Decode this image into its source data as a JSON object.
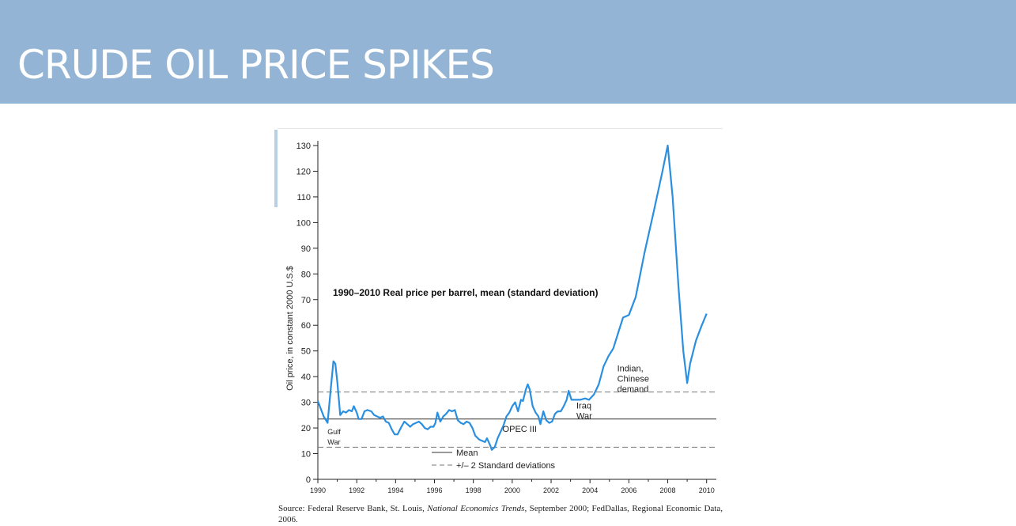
{
  "banner": {
    "title": "CRUDE OIL PRICE SPIKES",
    "color": "#93b4d4"
  },
  "chart_data": {
    "type": "line",
    "title": "1990–2010 Real price per barrel, mean (standard deviation)",
    "ylabel": "Oil price, in constant 2000 U.S.$",
    "xlabel": "",
    "xlim": [
      1990,
      2010.5
    ],
    "ylim": [
      0,
      130
    ],
    "x_ticks": [
      1990,
      1992,
      1994,
      1996,
      1998,
      2000,
      2002,
      2004,
      2006,
      2008,
      2010
    ],
    "y_ticks": [
      0,
      10,
      20,
      30,
      40,
      50,
      60,
      70,
      80,
      90,
      100,
      110,
      120,
      130
    ],
    "series": [
      {
        "color": "#2b8fe0",
        "points": [
          [
            1990.0,
            30.5
          ],
          [
            1990.3,
            24.5
          ],
          [
            1990.5,
            22.0
          ],
          [
            1990.7,
            38.0
          ],
          [
            1990.8,
            46.0
          ],
          [
            1990.9,
            45.0
          ],
          [
            1991.0,
            38.0
          ],
          [
            1991.15,
            25.0
          ],
          [
            1991.3,
            26.5
          ],
          [
            1991.45,
            26.0
          ],
          [
            1991.6,
            27.0
          ],
          [
            1991.75,
            26.5
          ],
          [
            1991.85,
            28.5
          ],
          [
            1992.0,
            26.0
          ],
          [
            1992.1,
            23.5
          ],
          [
            1992.25,
            23.5
          ],
          [
            1992.4,
            26.5
          ],
          [
            1992.55,
            27.0
          ],
          [
            1992.75,
            26.5
          ],
          [
            1992.9,
            25.0
          ],
          [
            1993.05,
            24.5
          ],
          [
            1993.2,
            24.0
          ],
          [
            1993.35,
            24.5
          ],
          [
            1993.5,
            22.5
          ],
          [
            1993.65,
            22.0
          ],
          [
            1993.8,
            19.5
          ],
          [
            1993.95,
            17.5
          ],
          [
            1994.1,
            17.5
          ],
          [
            1994.3,
            20.5
          ],
          [
            1994.45,
            22.5
          ],
          [
            1994.6,
            21.5
          ],
          [
            1994.75,
            20.5
          ],
          [
            1994.9,
            21.5
          ],
          [
            1995.05,
            22.0
          ],
          [
            1995.2,
            22.5
          ],
          [
            1995.35,
            21.5
          ],
          [
            1995.5,
            20.0
          ],
          [
            1995.65,
            19.5
          ],
          [
            1995.8,
            20.5
          ],
          [
            1995.95,
            20.5
          ],
          [
            1996.05,
            22.0
          ],
          [
            1996.15,
            26.0
          ],
          [
            1996.3,
            22.5
          ],
          [
            1996.45,
            24.5
          ],
          [
            1996.6,
            25.5
          ],
          [
            1996.75,
            27.0
          ],
          [
            1996.9,
            26.5
          ],
          [
            1997.05,
            27.0
          ],
          [
            1997.2,
            23.0
          ],
          [
            1997.35,
            22.0
          ],
          [
            1997.5,
            21.5
          ],
          [
            1997.65,
            22.5
          ],
          [
            1997.8,
            22.0
          ],
          [
            1997.95,
            20.0
          ],
          [
            1998.1,
            17.0
          ],
          [
            1998.3,
            15.5
          ],
          [
            1998.45,
            15.0
          ],
          [
            1998.6,
            14.5
          ],
          [
            1998.7,
            16.0
          ],
          [
            1998.85,
            13.5
          ],
          [
            1998.95,
            11.5
          ],
          [
            1999.1,
            12.5
          ],
          [
            1999.25,
            16.0
          ],
          [
            1999.4,
            18.5
          ],
          [
            1999.55,
            21.0
          ],
          [
            1999.7,
            24.5
          ],
          [
            1999.85,
            26.0
          ],
          [
            2000.0,
            28.5
          ],
          [
            2000.15,
            30.0
          ],
          [
            2000.3,
            26.5
          ],
          [
            2000.45,
            31.0
          ],
          [
            2000.55,
            30.5
          ],
          [
            2000.7,
            35.0
          ],
          [
            2000.8,
            37.0
          ],
          [
            2000.9,
            35.0
          ],
          [
            2001.05,
            28.5
          ],
          [
            2001.2,
            26.0
          ],
          [
            2001.35,
            24.5
          ],
          [
            2001.45,
            21.5
          ],
          [
            2001.6,
            26.5
          ],
          [
            2001.75,
            23.0
          ],
          [
            2001.9,
            22.0
          ],
          [
            2002.05,
            22.5
          ],
          [
            2002.2,
            25.5
          ],
          [
            2002.35,
            26.5
          ],
          [
            2002.5,
            26.5
          ],
          [
            2002.65,
            28.5
          ],
          [
            2002.8,
            31.0
          ],
          [
            2002.9,
            34.5
          ],
          [
            2003.05,
            31.0
          ],
          [
            2003.25,
            31.0
          ],
          [
            2003.5,
            31.0
          ],
          [
            2003.75,
            31.5
          ],
          [
            2003.95,
            31.0
          ],
          [
            2004.2,
            33.0
          ],
          [
            2004.45,
            37.0
          ],
          [
            2004.7,
            44.0
          ],
          [
            2004.95,
            48.0
          ],
          [
            2005.2,
            51.0
          ],
          [
            2005.45,
            57.0
          ],
          [
            2005.7,
            63.0
          ],
          [
            2006.0,
            64.0
          ],
          [
            2006.35,
            71.0
          ],
          [
            2006.8,
            88.0
          ],
          [
            2007.3,
            105.0
          ],
          [
            2007.7,
            119.0
          ],
          [
            2008.0,
            130.0
          ],
          [
            2008.25,
            110.0
          ],
          [
            2008.55,
            75.0
          ],
          [
            2008.8,
            50.0
          ],
          [
            2009.0,
            37.5
          ],
          [
            2009.15,
            45.0
          ],
          [
            2009.45,
            54.0
          ],
          [
            2009.75,
            60.0
          ],
          [
            2010.0,
            64.5
          ]
        ]
      }
    ],
    "reference_lines": {
      "mean": {
        "value": 23.5,
        "style": "solid"
      },
      "std_upper": {
        "value": 34,
        "style": "dashed"
      },
      "std_lower": {
        "value": 12.5,
        "style": "dashed"
      }
    },
    "legend": {
      "position": "bottom-center",
      "entries": [
        {
          "label": "Mean",
          "style": "solid"
        },
        {
          "label": "+/– 2 Standard deviations",
          "style": "dashed"
        }
      ]
    },
    "annotations": [
      {
        "lines": [
          "Gulf",
          "War"
        ],
        "x": 1990.5,
        "y": 17.5
      },
      {
        "lines": [
          "OPEC III"
        ],
        "x": 1999.5,
        "y": 18.5
      },
      {
        "lines": [
          "Iraq",
          "War"
        ],
        "x": 2003.3,
        "y": 27.5
      },
      {
        "lines": [
          "Indian,",
          "Chinese",
          "demand"
        ],
        "x": 2005.4,
        "y": 42.0
      }
    ]
  },
  "source": {
    "prefix": "Source: Federal Reserve Bank, St. Louis, ",
    "italic": "National Economics Trends",
    "suffix": ", September 2000; FedDallas, Regional Economic Data, 2006."
  }
}
